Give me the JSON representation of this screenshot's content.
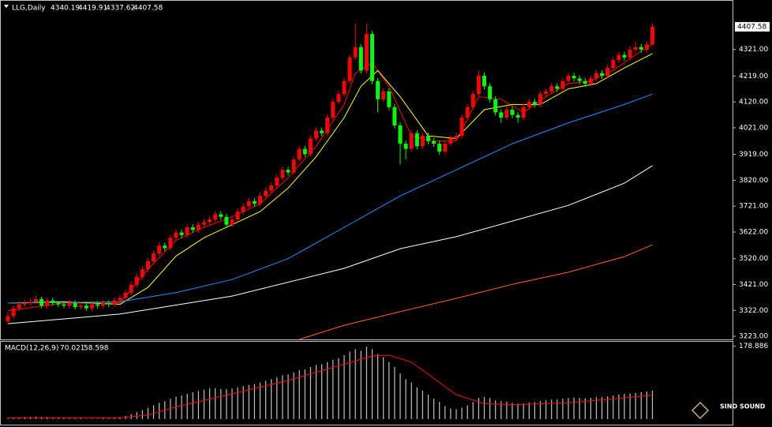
{
  "chart_data": [
    {
      "type": "candlestick",
      "title": "LLG,Daily",
      "up_color": "#ff0000",
      "down_color": "#00ff00",
      "candles": [
        [
          3280,
          3315,
          3268,
          3300
        ],
        [
          3300,
          3342,
          3290,
          3330
        ],
        [
          3330,
          3357,
          3320,
          3345
        ],
        [
          3345,
          3362,
          3335,
          3350
        ],
        [
          3350,
          3368,
          3340,
          3355
        ],
        [
          3355,
          3378,
          3345,
          3365
        ],
        [
          3365,
          3375,
          3330,
          3340
        ],
        [
          3340,
          3372,
          3330,
          3360
        ],
        [
          3360,
          3370,
          3340,
          3350
        ],
        [
          3350,
          3358,
          3335,
          3345
        ],
        [
          3345,
          3355,
          3330,
          3340
        ],
        [
          3340,
          3362,
          3330,
          3350
        ],
        [
          3350,
          3360,
          3325,
          3335
        ],
        [
          3335,
          3352,
          3325,
          3340
        ],
        [
          3340,
          3350,
          3320,
          3330
        ],
        [
          3330,
          3357,
          3320,
          3345
        ],
        [
          3345,
          3355,
          3330,
          3340
        ],
        [
          3340,
          3362,
          3330,
          3350
        ],
        [
          3350,
          3360,
          3335,
          3345
        ],
        [
          3345,
          3372,
          3335,
          3360
        ],
        [
          3360,
          3382,
          3350,
          3370
        ],
        [
          3370,
          3402,
          3360,
          3390
        ],
        [
          3390,
          3432,
          3380,
          3420
        ],
        [
          3420,
          3462,
          3410,
          3450
        ],
        [
          3450,
          3492,
          3440,
          3480
        ],
        [
          3480,
          3522,
          3470,
          3510
        ],
        [
          3510,
          3552,
          3500,
          3540
        ],
        [
          3540,
          3582,
          3530,
          3570
        ],
        [
          3570,
          3582,
          3548,
          3560
        ],
        [
          3560,
          3612,
          3550,
          3600
        ],
        [
          3600,
          3632,
          3590,
          3620
        ],
        [
          3620,
          3632,
          3598,
          3610
        ],
        [
          3610,
          3652,
          3600,
          3640
        ],
        [
          3640,
          3652,
          3618,
          3630
        ],
        [
          3630,
          3662,
          3620,
          3650
        ],
        [
          3650,
          3672,
          3640,
          3660
        ],
        [
          3660,
          3682,
          3650,
          3670
        ],
        [
          3670,
          3702,
          3660,
          3690
        ],
        [
          3690,
          3702,
          3668,
          3680
        ],
        [
          3680,
          3692,
          3638,
          3650
        ],
        [
          3650,
          3682,
          3640,
          3670
        ],
        [
          3670,
          3712,
          3660,
          3700
        ],
        [
          3700,
          3732,
          3690,
          3720
        ],
        [
          3720,
          3752,
          3710,
          3740
        ],
        [
          3740,
          3752,
          3718,
          3730
        ],
        [
          3730,
          3772,
          3720,
          3760
        ],
        [
          3760,
          3792,
          3750,
          3780
        ],
        [
          3780,
          3812,
          3770,
          3800
        ],
        [
          3800,
          3842,
          3790,
          3830
        ],
        [
          3830,
          3872,
          3820,
          3860
        ],
        [
          3860,
          3872,
          3838,
          3850
        ],
        [
          3850,
          3912,
          3840,
          3900
        ],
        [
          3900,
          3952,
          3890,
          3940
        ],
        [
          3940,
          3952,
          3908,
          3920
        ],
        [
          3920,
          3992,
          3910,
          3980
        ],
        [
          3980,
          4022,
          3970,
          4010
        ],
        [
          4010,
          4022,
          3988,
          4000
        ],
        [
          4000,
          4072,
          3990,
          4060
        ],
        [
          4060,
          4132,
          4050,
          4120
        ],
        [
          4120,
          4162,
          4110,
          4150
        ],
        [
          4150,
          4212,
          4140,
          4200
        ],
        [
          4200,
          4302,
          4190,
          4290
        ],
        [
          4290,
          4420,
          4280,
          4330
        ],
        [
          4330,
          4342,
          4228,
          4240
        ],
        [
          4240,
          4420,
          4228,
          4380
        ],
        [
          4380,
          4392,
          4188,
          4200
        ],
        [
          4200,
          4212,
          4080,
          4130
        ],
        [
          4130,
          4172,
          4120,
          4160
        ],
        [
          4160,
          4172,
          4088,
          4100
        ],
        [
          4100,
          4112,
          4018,
          4030
        ],
        [
          4030,
          4042,
          3880,
          3960
        ],
        [
          3960,
          3972,
          3900,
          3940
        ],
        [
          3940,
          4012,
          3930,
          4000
        ],
        [
          4000,
          4012,
          3938,
          3950
        ],
        [
          3950,
          4002,
          3940,
          3990
        ],
        [
          3990,
          4002,
          3958,
          3970
        ],
        [
          3970,
          3982,
          3948,
          3960
        ],
        [
          3960,
          3972,
          3918,
          3930
        ],
        [
          3930,
          3972,
          3920,
          3960
        ],
        [
          3960,
          3992,
          3950,
          3980
        ],
        [
          3980,
          4002,
          3970,
          3990
        ],
        [
          3990,
          4072,
          3980,
          4060
        ],
        [
          4060,
          4112,
          4050,
          4100
        ],
        [
          4100,
          4162,
          4090,
          4150
        ],
        [
          4150,
          4240,
          4140,
          4220
        ],
        [
          4220,
          4232,
          4168,
          4180
        ],
        [
          4180,
          4192,
          4118,
          4130
        ],
        [
          4130,
          4142,
          4068,
          4080
        ],
        [
          4080,
          4092,
          4040,
          4060
        ],
        [
          4060,
          4102,
          4050,
          4090
        ],
        [
          4090,
          4102,
          4058,
          4070
        ],
        [
          4070,
          4082,
          4040,
          4060
        ],
        [
          4060,
          4112,
          4050,
          4100
        ],
        [
          4100,
          4132,
          4090,
          4120
        ],
        [
          4120,
          4132,
          4098,
          4110
        ],
        [
          4110,
          4162,
          4100,
          4150
        ],
        [
          4150,
          4172,
          4140,
          4160
        ],
        [
          4160,
          4192,
          4150,
          4180
        ],
        [
          4180,
          4192,
          4158,
          4170
        ],
        [
          4170,
          4212,
          4160,
          4200
        ],
        [
          4200,
          4232,
          4190,
          4220
        ],
        [
          4220,
          4232,
          4198,
          4210
        ],
        [
          4210,
          4222,
          4188,
          4200
        ],
        [
          4200,
          4212,
          4178,
          4190
        ],
        [
          4190,
          4222,
          4180,
          4210
        ],
        [
          4210,
          4242,
          4200,
          4230
        ],
        [
          4230,
          4242,
          4208,
          4220
        ],
        [
          4220,
          4262,
          4210,
          4250
        ],
        [
          4250,
          4292,
          4240,
          4280
        ],
        [
          4280,
          4312,
          4270,
          4300
        ],
        [
          4300,
          4312,
          4278,
          4290
        ],
        [
          4290,
          4332,
          4280,
          4320
        ],
        [
          4320,
          4350,
          4310,
          4330
        ],
        [
          4330,
          4342,
          4308,
          4320
        ],
        [
          4320,
          4352,
          4310,
          4340
        ],
        [
          4340.19,
          4419.91,
          4337.62,
          4407.58
        ]
      ],
      "ylim": [
        3211,
        4501
      ],
      "yticks": [
        {
          "value": 4321,
          "label": "4321.00"
        },
        {
          "value": 4219,
          "label": "4219.00"
        },
        {
          "value": 4120,
          "label": "4120.00"
        },
        {
          "value": 4021,
          "label": "4021.00"
        },
        {
          "value": 3919,
          "label": "3919.00"
        },
        {
          "value": 3820,
          "label": "3820.00"
        },
        {
          "value": 3721,
          "label": "3721.00"
        },
        {
          "value": 3622,
          "label": "3622.00"
        },
        {
          "value": 3520,
          "label": "3520.00"
        },
        {
          "value": 3421,
          "label": "3421.00"
        },
        {
          "value": 3322,
          "label": "3322.00"
        },
        {
          "value": 3223,
          "label": "3223.00"
        }
      ],
      "lines": [
        {
          "color": "#ff0000",
          "x": [
            0,
            10,
            20,
            25,
            30,
            35,
            40,
            45,
            50,
            55,
            60,
            62,
            65,
            68,
            72,
            76,
            80,
            84,
            88,
            92,
            96,
            100,
            104,
            108,
            112,
            115
          ],
          "values": [
            3320,
            3350,
            3350,
            3480,
            3590,
            3640,
            3680,
            3730,
            3830,
            3950,
            4110,
            4230,
            4270,
            4180,
            3990,
            3970,
            3970,
            4140,
            4130,
            4080,
            4140,
            4190,
            4200,
            4240,
            4300,
            4340
          ]
        },
        {
          "color": "#ffff00",
          "x": [
            0,
            10,
            20,
            25,
            30,
            35,
            40,
            45,
            50,
            55,
            60,
            63,
            66,
            70,
            75,
            80,
            85,
            90,
            95,
            100,
            105,
            110,
            115
          ],
          "values": [
            3350,
            3355,
            3345,
            3410,
            3530,
            3600,
            3650,
            3700,
            3790,
            3910,
            4060,
            4180,
            4240,
            4140,
            3990,
            3980,
            4090,
            4110,
            4110,
            4170,
            4190,
            4250,
            4305
          ]
        },
        {
          "color": "#1e90ff",
          "x": [
            0,
            20,
            30,
            40,
            50,
            60,
            70,
            80,
            90,
            100,
            110,
            115
          ],
          "values": [
            3350,
            3355,
            3390,
            3440,
            3520,
            3640,
            3760,
            3860,
            3960,
            4040,
            4110,
            4150
          ]
        },
        {
          "color": "#ffffff",
          "x": [
            0,
            20,
            40,
            60,
            70,
            80,
            90,
            100,
            110,
            115
          ],
          "values": [
            3271,
            3308,
            3377,
            3483,
            3558,
            3604,
            3664,
            3724,
            3809,
            3876
          ]
        },
        {
          "color": "#ff6020",
          "x": [
            52,
            60,
            70,
            80,
            90,
            100,
            110,
            115
          ],
          "values": [
            3211,
            3265,
            3317,
            3368,
            3422,
            3468,
            3528,
            3573
          ]
        }
      ]
    },
    {
      "type": "macd",
      "title": "MACD(12,26,9)",
      "color": "#c0c0c0",
      "values": [
        2,
        3,
        4,
        5,
        5,
        6,
        5,
        5,
        4,
        4,
        3,
        3,
        2,
        2,
        1,
        1,
        1,
        2,
        2,
        3,
        5,
        8,
        12,
        17,
        22,
        28,
        34,
        40,
        44,
        50,
        55,
        58,
        62,
        66,
        69,
        72,
        75,
        76,
        74,
        74,
        75,
        78,
        81,
        84,
        86,
        90,
        94,
        98,
        103,
        108,
        110,
        115,
        120,
        122,
        128,
        133,
        135,
        140,
        146,
        150,
        157,
        166,
        172,
        168,
        178,
        172,
        160,
        152,
        140,
        128,
        112,
        98,
        90,
        78,
        70,
        60,
        50,
        42,
        32,
        26,
        24,
        28,
        34,
        42,
        52,
        54,
        52,
        46,
        44,
        43,
        40,
        38,
        39,
        41,
        42,
        44,
        46,
        48,
        48,
        50,
        52,
        53,
        52,
        51,
        52,
        54,
        54,
        56,
        58,
        60,
        62,
        63,
        64,
        66,
        68,
        70.021
      ],
      "signal": {
        "color": "#ff0000",
        "x": [
          0,
          20,
          25,
          30,
          40,
          50,
          60,
          65,
          68,
          72,
          76,
          80,
          85,
          90,
          100,
          110,
          115
        ],
        "values": [
          3,
          3,
          10,
          30,
          62,
          95,
          135,
          155,
          157,
          140,
          100,
          60,
          38,
          35,
          40,
          52,
          58.598
        ]
      },
      "ylim": [
        -4,
        190
      ],
      "yticks": [
        178.886
      ]
    }
  ],
  "watermark": "SINO SOUND"
}
